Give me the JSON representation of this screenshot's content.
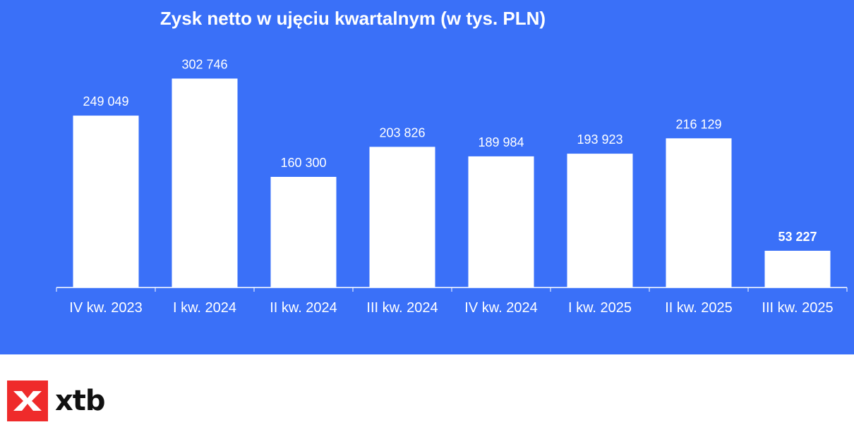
{
  "chart_data": {
    "type": "bar",
    "title": "Zysk netto w ujęciu kwartalnym (w tys. PLN)",
    "xlabel": "",
    "ylabel": "",
    "categories": [
      "IV kw. 2023",
      "I kw. 2024",
      "II kw. 2024",
      "III kw. 2024",
      "IV kw. 2024",
      "I kw. 2025",
      "II kw. 2025",
      "III kw. 2025"
    ],
    "values": [
      249049,
      302746,
      160300,
      203826,
      189984,
      193923,
      216129,
      53227
    ],
    "value_labels": [
      "249 049",
      "302 746",
      "160 300",
      "203 826",
      "189 984",
      "193 923",
      "216 129",
      "53 227"
    ],
    "highlighted_label_index": 7,
    "ylim": [
      0,
      340000
    ],
    "grid": false,
    "legend": "none",
    "colors": {
      "background": "#3a70f8",
      "bar": "#ffffff",
      "text": "#ffffff",
      "axis": "#ffffff"
    }
  },
  "brand": {
    "name": "xtb",
    "mark_color": "#ef2b2b",
    "icon": "xtb-x-logo-icon"
  }
}
